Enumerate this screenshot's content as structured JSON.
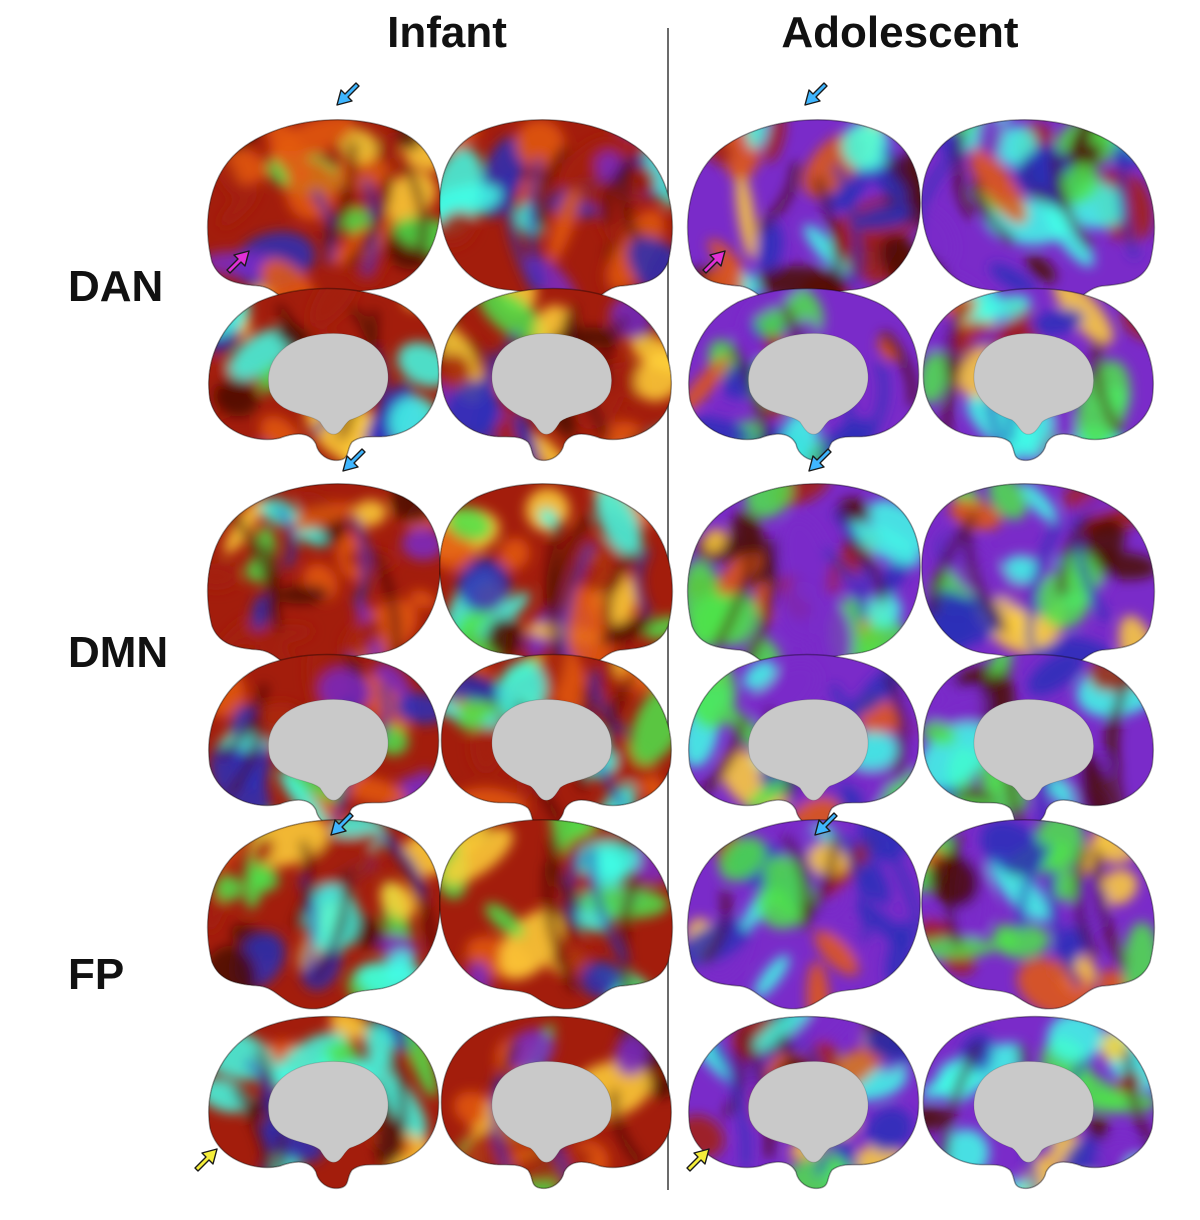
{
  "figure": {
    "columns": [
      "Infant",
      "Adolescent"
    ],
    "rows": [
      "DAN",
      "DMN",
      "FP"
    ]
  },
  "colors": {
    "hot_dark": "#4a0a06",
    "hot_red": "#a31d0c",
    "hot_orange": "#e45a12",
    "hot_yellow": "#ffd23a",
    "cool_blue": "#2a2fb8",
    "cool_purple": "#7a2bc9",
    "cool_green": "#4ee44a",
    "cool_cyan": "#40ffe8",
    "wall_gray": "#c9c9c9",
    "arrow_blue": "#3fb6ff",
    "arrow_magenta": "#e02fd6",
    "arrow_yellow": "#f5ee3a",
    "divider": "#6b6b6b"
  },
  "arrows": [
    {
      "name": "dan-infant-blue-arrow",
      "color": "arrow_blue"
    },
    {
      "name": "dan-infant-magenta-arrow",
      "color": "arrow_magenta"
    },
    {
      "name": "dan-adolescent-blue-arrow",
      "color": "arrow_blue"
    },
    {
      "name": "dan-adolescent-magenta-arrow",
      "color": "arrow_magenta"
    },
    {
      "name": "dmn-infant-blue-arrow",
      "color": "arrow_blue"
    },
    {
      "name": "dmn-adolescent-blue-arrow",
      "color": "arrow_blue"
    },
    {
      "name": "fp-infant-blue-arrow",
      "color": "arrow_blue"
    },
    {
      "name": "fp-adolescent-blue-arrow",
      "color": "arrow_blue"
    },
    {
      "name": "fp-infant-yellow-arrow",
      "color": "arrow_yellow"
    },
    {
      "name": "fp-adolescent-yellow-arrow",
      "color": "arrow_yellow"
    }
  ]
}
